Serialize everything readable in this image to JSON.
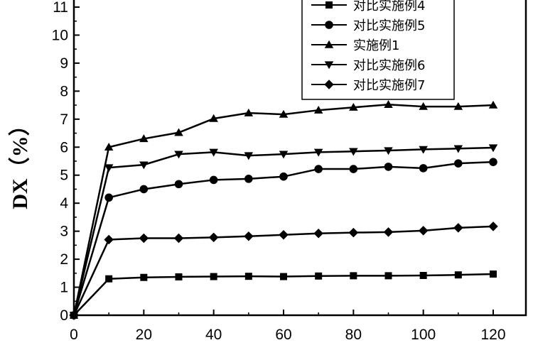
{
  "chart_data": {
    "type": "line",
    "title": "",
    "xlabel": "",
    "ylabel": "DX（%）",
    "xlim": [
      0,
      120
    ],
    "ylim": [
      0,
      11
    ],
    "x_ticks": [
      0,
      20,
      40,
      60,
      80,
      100,
      120
    ],
    "y_ticks": [
      0,
      1,
      2,
      3,
      4,
      5,
      6,
      7,
      8,
      9,
      10,
      11
    ],
    "grid": false,
    "legend_position": "top-right",
    "x": [
      0,
      10,
      20,
      30,
      40,
      50,
      60,
      70,
      80,
      90,
      100,
      110,
      120
    ],
    "series": [
      {
        "name": "对比实施例4",
        "marker": "square",
        "values": [
          0,
          1.3,
          1.35,
          1.37,
          1.38,
          1.39,
          1.38,
          1.4,
          1.41,
          1.41,
          1.42,
          1.44,
          1.47
        ]
      },
      {
        "name": "对比实施例5",
        "marker": "circle",
        "values": [
          0,
          4.2,
          4.5,
          4.68,
          4.83,
          4.87,
          4.95,
          5.22,
          5.22,
          5.3,
          5.25,
          5.42,
          5.47
        ]
      },
      {
        "name": "实施例1",
        "marker": "triangle-up",
        "values": [
          0,
          6.0,
          6.3,
          6.52,
          7.02,
          7.22,
          7.17,
          7.32,
          7.42,
          7.52,
          7.45,
          7.45,
          7.5
        ]
      },
      {
        "name": "对比实施例6",
        "marker": "triangle-down",
        "values": [
          0,
          5.27,
          5.37,
          5.75,
          5.82,
          5.7,
          5.75,
          5.82,
          5.85,
          5.88,
          5.92,
          5.95,
          5.98
        ]
      },
      {
        "name": "对比实施例7",
        "marker": "diamond",
        "values": [
          0,
          2.7,
          2.75,
          2.75,
          2.78,
          2.82,
          2.87,
          2.92,
          2.95,
          2.97,
          3.02,
          3.12,
          3.17
        ]
      }
    ],
    "colors": {
      "line": "#000000",
      "background": "#ffffff"
    }
  }
}
